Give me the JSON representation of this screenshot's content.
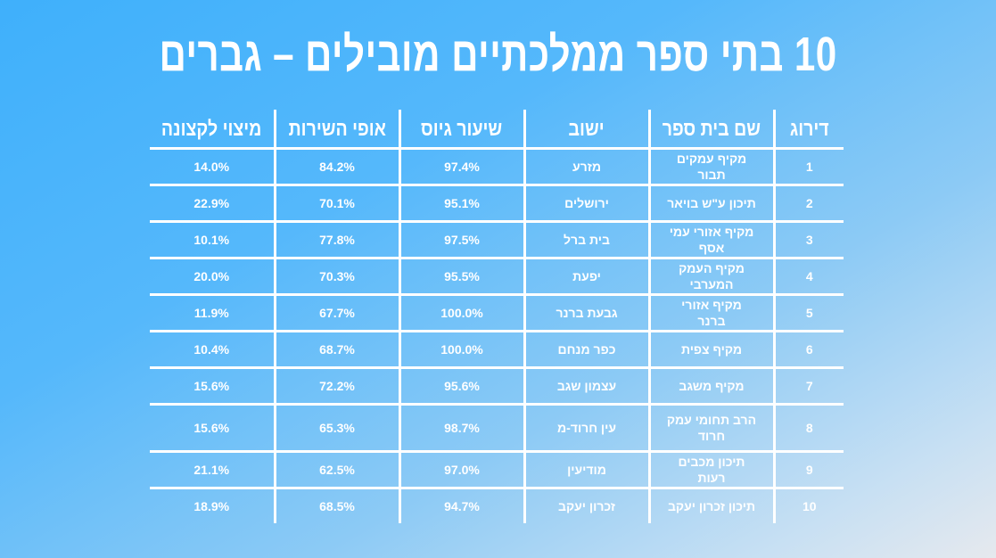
{
  "title": "10 בתי ספר ממלכתיים מובילים – גברים",
  "table": {
    "headers": [
      "דירוג",
      "שם בית ספר",
      "ישוב",
      "שיעור גיוס",
      "אופי השירות",
      "מיצוי לקצונה"
    ],
    "rows": [
      [
        "1",
        "מקיף עמקים תבור",
        "מזרע",
        "97.4%",
        "84.2%",
        "14.0%"
      ],
      [
        "2",
        "תיכון ע\"ש בויאר",
        "ירושלים",
        "95.1%",
        "70.1%",
        "22.9%"
      ],
      [
        "3",
        "מקיף אזורי עמי אסף",
        "בית ברל",
        "97.5%",
        "77.8%",
        "10.1%"
      ],
      [
        "4",
        "מקיף העמק המערבי",
        "יפעת",
        "95.5%",
        "70.3%",
        "20.0%"
      ],
      [
        "5",
        "מקיף אזורי ברנר",
        "גבעת ברנר",
        "100.0%",
        "67.7%",
        "11.9%"
      ],
      [
        "6",
        "מקיף צפית",
        "כפר מנחם",
        "100.0%",
        "68.7%",
        "10.4%"
      ],
      [
        "7",
        "מקיף משגב",
        "עצמון שגב",
        "95.6%",
        "72.2%",
        "15.6%"
      ],
      [
        "8",
        "הרב תחומי עמק חרוד",
        "עין חרוד-מ",
        "98.7%",
        "65.3%",
        "15.6%"
      ],
      [
        "9",
        "תיכון מכבים רעות",
        "מודיעין",
        "97.0%",
        "62.5%",
        "21.1%"
      ],
      [
        "10",
        "תיכון זכרון יעקב",
        "זכרון יעקב",
        "94.7%",
        "68.5%",
        "18.9%"
      ]
    ]
  },
  "colors": {
    "background_start": "#3fb0fb",
    "background_end": "#e6e9ee",
    "text": "#ffffff",
    "grid": "#ffffff"
  }
}
